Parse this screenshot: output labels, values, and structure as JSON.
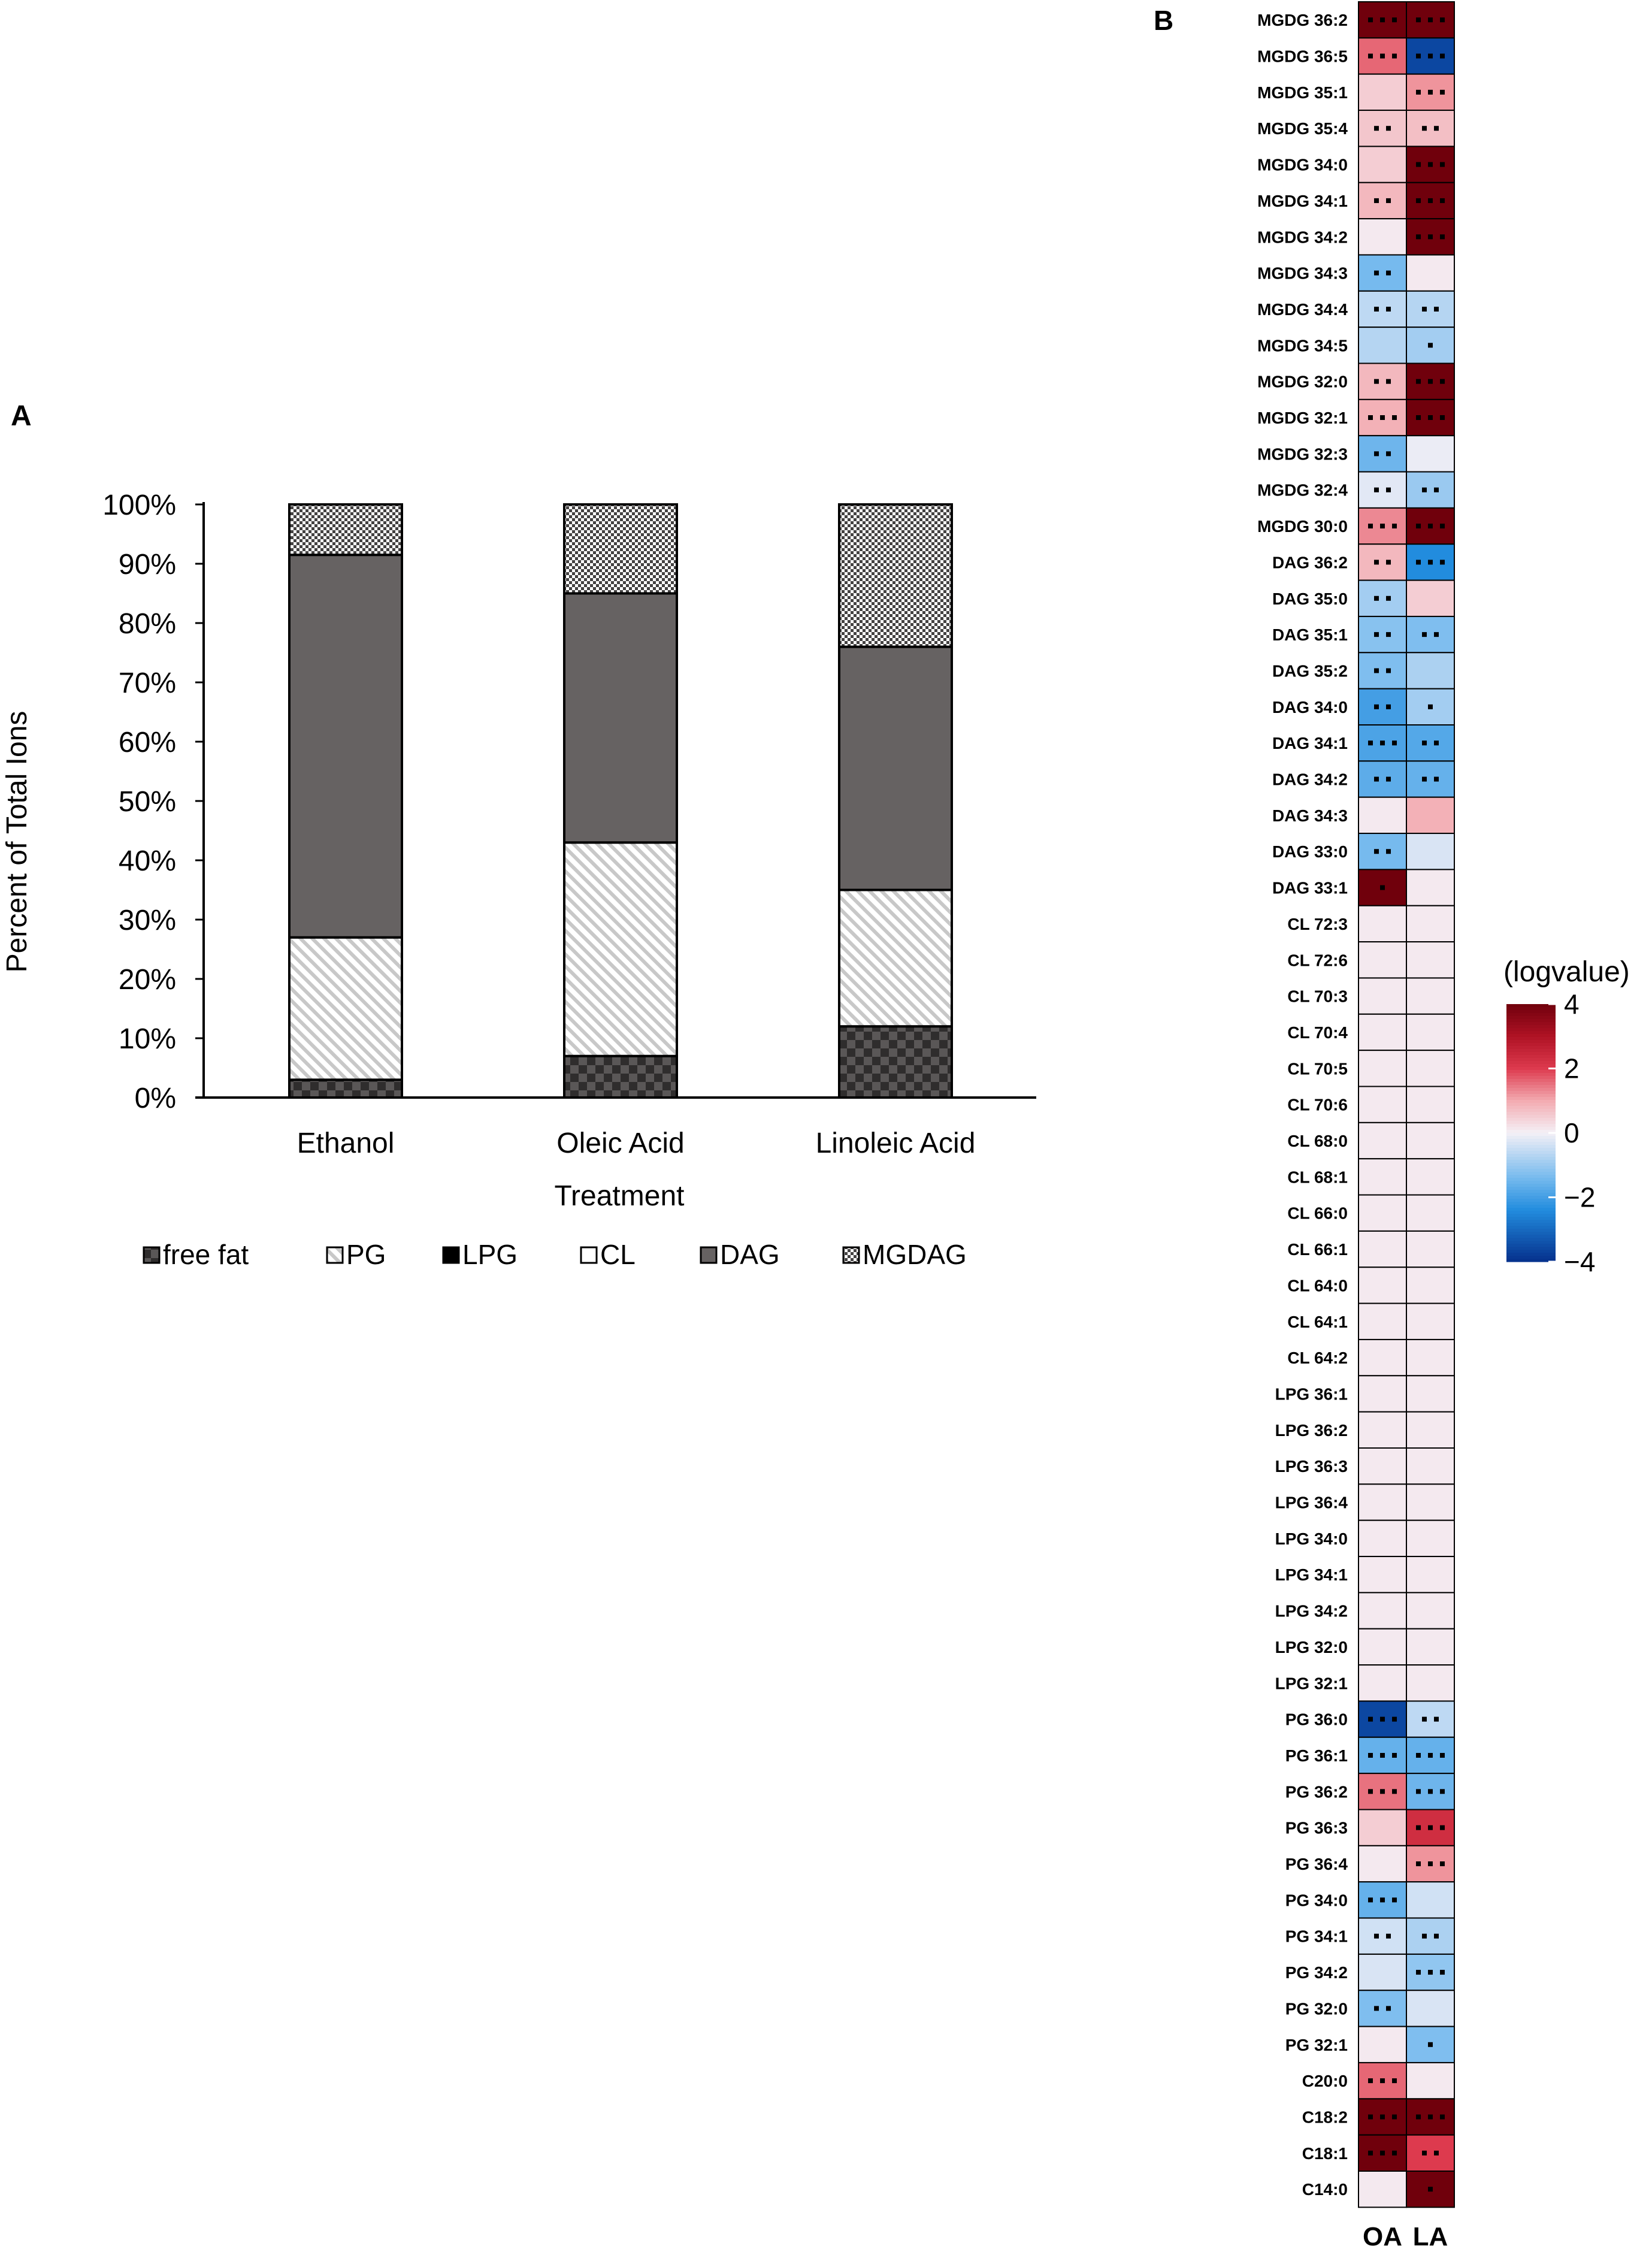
{
  "panel_a": {
    "label": "A",
    "chart_data": {
      "type": "bar",
      "stacked": true,
      "percent": true,
      "categories": [
        "Ethanol",
        "Oleic Acid",
        "Linoleic Acid"
      ],
      "series": [
        {
          "name": "free fat",
          "pattern": "checker",
          "values": [
            3,
            7,
            12
          ]
        },
        {
          "name": "PG",
          "pattern": "hatch",
          "values": [
            24,
            36,
            23
          ]
        },
        {
          "name": "LPG",
          "pattern": "solid-black",
          "values": [
            0,
            0,
            0
          ]
        },
        {
          "name": "CL",
          "pattern": "white",
          "values": [
            0,
            0,
            0
          ]
        },
        {
          "name": "DAG",
          "pattern": "solid-gray",
          "values": [
            64.5,
            42,
            41
          ]
        },
        {
          "name": "MGDAG",
          "pattern": "fine-checker",
          "values": [
            8.5,
            15,
            24
          ]
        }
      ],
      "xlabel": "Treatment",
      "ylabel": "Percent of Total Ions",
      "ylim": [
        0,
        100
      ],
      "yticks": [
        "0%",
        "10%",
        "20%",
        "30%",
        "40%",
        "50%",
        "60%",
        "70%",
        "80%",
        "90%",
        "100%"
      ],
      "legend_position": "bottom"
    }
  },
  "panel_b": {
    "label": "B",
    "chart_data": {
      "type": "heatmap",
      "columns": [
        "OA",
        "LA"
      ],
      "colorbar_title": "(logvalue)",
      "colorbar_range": [
        -4,
        4
      ],
      "colorbar_ticks": [
        "4",
        "2",
        "0",
        "−2",
        "−4"
      ],
      "rows": [
        {
          "label": "MGDG 36:2",
          "values": [
            4,
            4
          ],
          "sig": [
            3,
            3
          ]
        },
        {
          "label": "MGDG 36:5",
          "values": [
            1.6,
            -3.6
          ],
          "sig": [
            3,
            3
          ]
        },
        {
          "label": "MGDG 35:1",
          "values": [
            0.5,
            1.2
          ],
          "sig": [
            0,
            3
          ]
        },
        {
          "label": "MGDG 35:4",
          "values": [
            0.6,
            0.7
          ],
          "sig": [
            2,
            2
          ]
        },
        {
          "label": "MGDG 34:0",
          "values": [
            0.5,
            4
          ],
          "sig": [
            0,
            3
          ]
        },
        {
          "label": "MGDG 34:1",
          "values": [
            0.8,
            4
          ],
          "sig": [
            2,
            3
          ]
        },
        {
          "label": "MGDG 34:2",
          "values": [
            0.1,
            4
          ],
          "sig": [
            0,
            3
          ]
        },
        {
          "label": "MGDG 34:3",
          "values": [
            -1.4,
            0.1
          ],
          "sig": [
            2,
            0
          ]
        },
        {
          "label": "MGDG 34:4",
          "values": [
            -0.6,
            -0.7
          ],
          "sig": [
            2,
            2
          ]
        },
        {
          "label": "MGDG 34:5",
          "values": [
            -0.7,
            -0.9
          ],
          "sig": [
            0,
            1
          ]
        },
        {
          "label": "MGDG 32:0",
          "values": [
            0.8,
            4
          ],
          "sig": [
            2,
            3
          ]
        },
        {
          "label": "MGDG 32:1",
          "values": [
            0.9,
            4
          ],
          "sig": [
            3,
            3
          ]
        },
        {
          "label": "MGDG 32:3",
          "values": [
            -1.5,
            -0.1
          ],
          "sig": [
            2,
            0
          ]
        },
        {
          "label": "MGDG 32:4",
          "values": [
            -0.2,
            -1.0
          ],
          "sig": [
            2,
            2
          ]
        },
        {
          "label": "MGDG 30:0",
          "values": [
            1.3,
            4
          ],
          "sig": [
            3,
            3
          ]
        },
        {
          "label": "DAG 36:2",
          "values": [
            0.8,
            -2.4
          ],
          "sig": [
            2,
            3
          ]
        },
        {
          "label": "DAG 35:0",
          "values": [
            -0.9,
            0.5
          ],
          "sig": [
            2,
            0
          ]
        },
        {
          "label": "DAG 35:1",
          "values": [
            -1.2,
            -1.3
          ],
          "sig": [
            2,
            2
          ]
        },
        {
          "label": "DAG 35:2",
          "values": [
            -1.3,
            -0.8
          ],
          "sig": [
            2,
            0
          ]
        },
        {
          "label": "DAG 34:0",
          "values": [
            -2.0,
            -0.9
          ],
          "sig": [
            2,
            1
          ]
        },
        {
          "label": "DAG 34:1",
          "values": [
            -1.9,
            -1.8
          ],
          "sig": [
            3,
            2
          ]
        },
        {
          "label": "DAG 34:2",
          "values": [
            -1.7,
            -1.6
          ],
          "sig": [
            2,
            2
          ]
        },
        {
          "label": "DAG 34:3",
          "values": [
            0.1,
            0.9
          ],
          "sig": [
            0,
            0
          ]
        },
        {
          "label": "DAG 33:0",
          "values": [
            -1.4,
            -0.3
          ],
          "sig": [
            2,
            0
          ]
        },
        {
          "label": "DAG 33:1",
          "values": [
            4,
            0.1
          ],
          "sig": [
            1,
            0
          ]
        },
        {
          "label": "CL 72:3",
          "values": [
            0.1,
            0.1
          ],
          "sig": [
            0,
            0
          ]
        },
        {
          "label": "CL 72:6",
          "values": [
            0.1,
            0.1
          ],
          "sig": [
            0,
            0
          ]
        },
        {
          "label": "CL 70:3",
          "values": [
            0.1,
            0.1
          ],
          "sig": [
            0,
            0
          ]
        },
        {
          "label": "CL 70:4",
          "values": [
            0.1,
            0.1
          ],
          "sig": [
            0,
            0
          ]
        },
        {
          "label": "CL 70:5",
          "values": [
            0.1,
            0.1
          ],
          "sig": [
            0,
            0
          ]
        },
        {
          "label": "CL 70:6",
          "values": [
            0.1,
            0.1
          ],
          "sig": [
            0,
            0
          ]
        },
        {
          "label": "CL 68:0",
          "values": [
            0.1,
            0.1
          ],
          "sig": [
            0,
            0
          ]
        },
        {
          "label": "CL 68:1",
          "values": [
            0.1,
            0.1
          ],
          "sig": [
            0,
            0
          ]
        },
        {
          "label": "CL 66:0",
          "values": [
            0.1,
            0.1
          ],
          "sig": [
            0,
            0
          ]
        },
        {
          "label": "CL 66:1",
          "values": [
            0.1,
            0.1
          ],
          "sig": [
            0,
            0
          ]
        },
        {
          "label": "CL 64:0",
          "values": [
            0.1,
            0.1
          ],
          "sig": [
            0,
            0
          ]
        },
        {
          "label": "CL 64:1",
          "values": [
            0.1,
            0.1
          ],
          "sig": [
            0,
            0
          ]
        },
        {
          "label": "CL 64:2",
          "values": [
            0.1,
            0.1
          ],
          "sig": [
            0,
            0
          ]
        },
        {
          "label": "LPG 36:1",
          "values": [
            0.1,
            0.1
          ],
          "sig": [
            0,
            0
          ]
        },
        {
          "label": "LPG 36:2",
          "values": [
            0.1,
            0.1
          ],
          "sig": [
            0,
            0
          ]
        },
        {
          "label": "LPG 36:3",
          "values": [
            0.1,
            0.1
          ],
          "sig": [
            0,
            0
          ]
        },
        {
          "label": "LPG 36:4",
          "values": [
            0.1,
            0.1
          ],
          "sig": [
            0,
            0
          ]
        },
        {
          "label": "LPG 34:0",
          "values": [
            0.1,
            0.1
          ],
          "sig": [
            0,
            0
          ]
        },
        {
          "label": "LPG 34:1",
          "values": [
            0.1,
            0.1
          ],
          "sig": [
            0,
            0
          ]
        },
        {
          "label": "LPG 34:2",
          "values": [
            0.1,
            0.1
          ],
          "sig": [
            0,
            0
          ]
        },
        {
          "label": "LPG 32:0",
          "values": [
            0.1,
            0.1
          ],
          "sig": [
            0,
            0
          ]
        },
        {
          "label": "LPG 32:1",
          "values": [
            0.1,
            0.1
          ],
          "sig": [
            0,
            0
          ]
        },
        {
          "label": "PG 36:0",
          "values": [
            -3.6,
            -0.6
          ],
          "sig": [
            3,
            2
          ]
        },
        {
          "label": "PG  36:1",
          "values": [
            -1.6,
            -1.6
          ],
          "sig": [
            3,
            3
          ]
        },
        {
          "label": "PG 36:2",
          "values": [
            1.5,
            -1.5
          ],
          "sig": [
            3,
            3
          ]
        },
        {
          "label": "PG 36:3",
          "values": [
            0.5,
            2.3
          ],
          "sig": [
            0,
            3
          ]
        },
        {
          "label": "PG 36:4",
          "values": [
            0.1,
            1.2
          ],
          "sig": [
            0,
            3
          ]
        },
        {
          "label": "PG 34:0",
          "values": [
            -1.6,
            -0.4
          ],
          "sig": [
            3,
            0
          ]
        },
        {
          "label": "PG 34:1",
          "values": [
            -0.4,
            -0.8
          ],
          "sig": [
            2,
            2
          ]
        },
        {
          "label": "PG 34:2",
          "values": [
            -0.3,
            -1.1
          ],
          "sig": [
            0,
            3
          ]
        },
        {
          "label": "PG 32:0",
          "values": [
            -1.3,
            -0.3
          ],
          "sig": [
            2,
            0
          ]
        },
        {
          "label": "PG 32:1",
          "values": [
            0.1,
            -1.3
          ],
          "sig": [
            0,
            1
          ]
        },
        {
          "label": "C20:0",
          "values": [
            1.6,
            0.1
          ],
          "sig": [
            3,
            0
          ]
        },
        {
          "label": "C18:2",
          "values": [
            4,
            4
          ],
          "sig": [
            3,
            3
          ]
        },
        {
          "label": "C18:1",
          "values": [
            4,
            2.0
          ],
          "sig": [
            3,
            2
          ]
        },
        {
          "label": "C14:0",
          "values": [
            0.1,
            4
          ],
          "sig": [
            0,
            1
          ]
        }
      ]
    }
  }
}
